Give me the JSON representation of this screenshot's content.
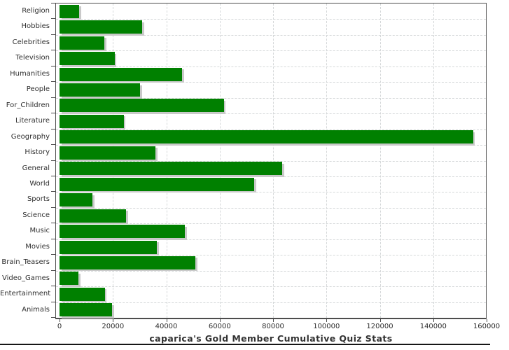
{
  "chart_data": {
    "type": "bar",
    "orientation": "horizontal",
    "title": "caparica's Gold Member Cumulative Quiz Stats",
    "xlabel": "",
    "ylabel": "",
    "categories": [
      "Religion",
      "Hobbies",
      "Celebrities",
      "Television",
      "Humanities",
      "People",
      "For_Children",
      "Literature",
      "Geography",
      "History",
      "General",
      "World",
      "Sports",
      "Science",
      "Music",
      "Movies",
      "Brain_Teasers",
      "Video_Games",
      "Entertainment",
      "Animals"
    ],
    "values": [
      7400,
      31000,
      16800,
      20700,
      45900,
      30200,
      61500,
      24000,
      155000,
      36000,
      83500,
      73000,
      12400,
      25000,
      47000,
      36500,
      51000,
      7200,
      17000,
      19700
    ],
    "xlim": [
      0,
      160000
    ],
    "x_ticks": [
      0,
      20000,
      40000,
      60000,
      80000,
      100000,
      120000,
      140000,
      160000
    ],
    "grid": "dashed-both-axes",
    "legend": "none",
    "colors": {
      "bar": "#008000",
      "bar_shadow": "#c9c9c9",
      "grid": "#d5d8d9",
      "axis": "#4d4d4d",
      "tick_text": "#2f2f2f",
      "title_text": "#333333",
      "background": "#ffffff"
    }
  }
}
